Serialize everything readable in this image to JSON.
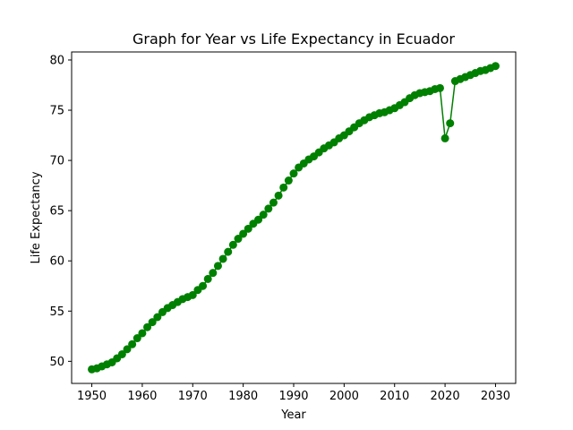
{
  "chart_data": {
    "type": "line",
    "title": "Graph for Year vs Life Expectancy in Ecuador",
    "xlabel": "Year",
    "ylabel": "Life Expectancy",
    "xlim": [
      1946,
      2034
    ],
    "ylim": [
      47.8,
      80.8
    ],
    "xticks": [
      1950,
      1960,
      1970,
      1980,
      1990,
      2000,
      2010,
      2020,
      2030
    ],
    "yticks": [
      50,
      55,
      60,
      65,
      70,
      75,
      80
    ],
    "grid": false,
    "series": [
      {
        "color": "#008000",
        "marker": "circle",
        "x": [
          1950,
          1951,
          1952,
          1953,
          1954,
          1955,
          1956,
          1957,
          1958,
          1959,
          1960,
          1961,
          1962,
          1963,
          1964,
          1965,
          1966,
          1967,
          1968,
          1969,
          1970,
          1971,
          1972,
          1973,
          1974,
          1975,
          1976,
          1977,
          1978,
          1979,
          1980,
          1981,
          1982,
          1983,
          1984,
          1985,
          1986,
          1987,
          1988,
          1989,
          1990,
          1991,
          1992,
          1993,
          1994,
          1995,
          1996,
          1997,
          1998,
          1999,
          2000,
          2001,
          2002,
          2003,
          2004,
          2005,
          2006,
          2007,
          2008,
          2009,
          2010,
          2011,
          2012,
          2013,
          2014,
          2015,
          2016,
          2017,
          2018,
          2019,
          2020,
          2021,
          2022,
          2023,
          2024,
          2025,
          2026,
          2027,
          2028,
          2029,
          2030
        ],
        "y": [
          49.2,
          49.3,
          49.5,
          49.7,
          49.9,
          50.3,
          50.7,
          51.2,
          51.7,
          52.3,
          52.8,
          53.4,
          53.9,
          54.4,
          54.9,
          55.3,
          55.6,
          55.9,
          56.2,
          56.4,
          56.6,
          57.1,
          57.5,
          58.2,
          58.8,
          59.5,
          60.2,
          60.9,
          61.6,
          62.2,
          62.7,
          63.2,
          63.7,
          64.1,
          64.6,
          65.2,
          65.8,
          66.5,
          67.3,
          68.0,
          68.7,
          69.3,
          69.7,
          70.1,
          70.4,
          70.8,
          71.2,
          71.5,
          71.8,
          72.2,
          72.5,
          72.9,
          73.3,
          73.7,
          74.0,
          74.3,
          74.5,
          74.7,
          74.8,
          75.0,
          75.2,
          75.5,
          75.8,
          76.2,
          76.5,
          76.7,
          76.8,
          76.9,
          77.1,
          77.2,
          72.2,
          73.7,
          77.9,
          78.1,
          78.3,
          78.5,
          78.7,
          78.9,
          79.0,
          79.2,
          79.4
        ]
      }
    ]
  }
}
